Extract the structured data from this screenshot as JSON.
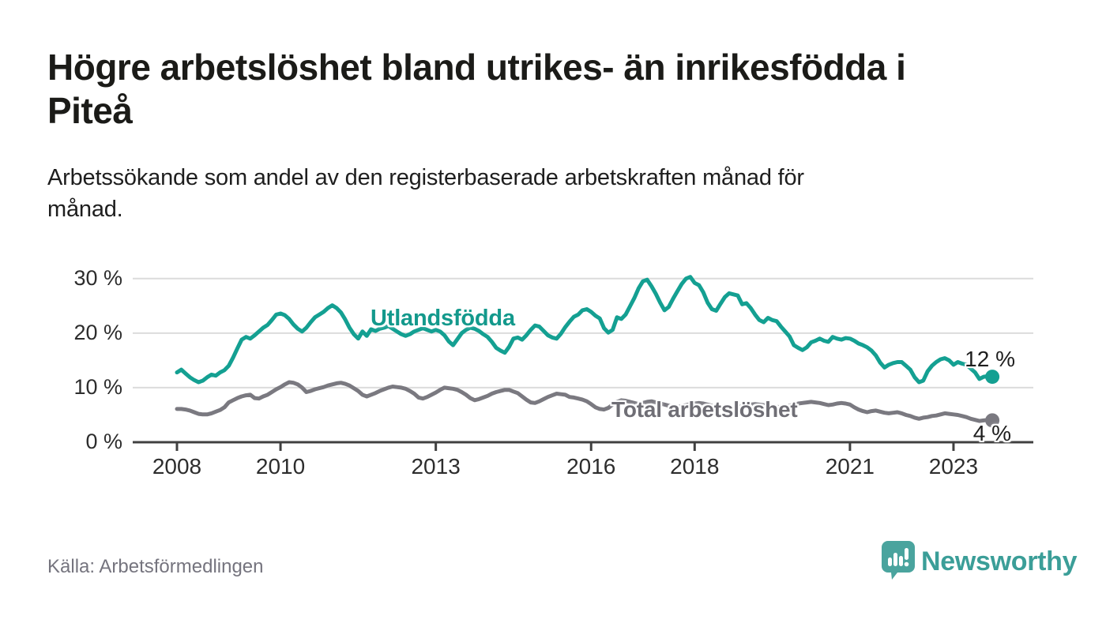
{
  "page": {
    "title_lines": [
      "Högre arbetslöshet bland utrikes- än inrikesfödda i",
      "Piteå"
    ],
    "subtitle_lines": [
      "Arbetssökande som andel av den registerbaserade arbetskraften månad för",
      "månad."
    ],
    "source": "Källa: Arbetsförmedlingen",
    "brand": "Newsworthy",
    "brand_color": "#3b9e98",
    "logo_bubble_color": "#4aa49e"
  },
  "chart_data": {
    "type": "line",
    "x_unit": "month",
    "x_start": "2008-01",
    "x_end": "2023-10",
    "points_per_year": 12,
    "ylim": [
      0,
      32
    ],
    "grid": "horizontal",
    "grid_color": "#dcdcdc",
    "axis_color": "#404040",
    "y_ticks": [
      {
        "value": 30,
        "label": "30 %"
      },
      {
        "value": 20,
        "label": "20 %"
      },
      {
        "value": 10,
        "label": "10 %"
      },
      {
        "value": 0,
        "label": "0 %"
      }
    ],
    "x_ticks": [
      {
        "year": 2008,
        "label": "2008"
      },
      {
        "year": 2010,
        "label": "2010"
      },
      {
        "year": 2013,
        "label": "2013"
      },
      {
        "year": 2016,
        "label": "2016"
      },
      {
        "year": 2018,
        "label": "2018"
      },
      {
        "year": 2021,
        "label": "2021"
      },
      {
        "year": 2023,
        "label": "2023"
      }
    ],
    "series": [
      {
        "name": "Utlandsfödda",
        "label": "Utlandsfödda",
        "end_label": "12 %",
        "end_value": 12,
        "color": "#14a092",
        "values": [
          12.8,
          13.3,
          12.6,
          11.9,
          11.4,
          11.0,
          11.3,
          11.9,
          12.4,
          12.2,
          12.8,
          13.2,
          14.0,
          15.5,
          17.2,
          18.8,
          19.3,
          19.0,
          19.6,
          20.3,
          21.0,
          21.5,
          22.4,
          23.4,
          23.6,
          23.3,
          22.6,
          21.6,
          20.8,
          20.3,
          21.0,
          22.0,
          22.9,
          23.4,
          23.9,
          24.6,
          25.1,
          24.6,
          23.8,
          22.5,
          21.0,
          19.8,
          19.0,
          20.3,
          19.5,
          20.7,
          20.4,
          20.8,
          21.0,
          21.3,
          20.8,
          20.3,
          19.8,
          19.5,
          19.8,
          20.3,
          20.6,
          20.9,
          20.6,
          20.3,
          20.6,
          20.3,
          19.6,
          18.5,
          17.8,
          18.9,
          20.0,
          20.6,
          21.0,
          20.8,
          20.4,
          19.8,
          19.3,
          18.4,
          17.3,
          16.8,
          16.4,
          17.5,
          19.0,
          19.2,
          18.8,
          19.6,
          20.6,
          21.4,
          21.2,
          20.4,
          19.6,
          19.2,
          19.0,
          19.9,
          21.1,
          22.1,
          23.0,
          23.4,
          24.2,
          24.4,
          23.9,
          23.2,
          22.7,
          20.9,
          20.1,
          20.6,
          22.9,
          22.6,
          23.4,
          24.9,
          26.4,
          28.2,
          29.5,
          29.8,
          28.6,
          27.2,
          25.6,
          24.2,
          24.8,
          26.3,
          27.7,
          29.0,
          30.0,
          30.3,
          29.2,
          28.8,
          27.5,
          25.6,
          24.4,
          24.1,
          25.4,
          26.6,
          27.3,
          27.1,
          26.9,
          25.3,
          25.5,
          24.6,
          23.4,
          22.4,
          22.0,
          22.8,
          22.4,
          22.2,
          21.2,
          20.3,
          19.4,
          17.8,
          17.3,
          16.9,
          17.4,
          18.3,
          18.6,
          19.0,
          18.6,
          18.4,
          19.3,
          19.0,
          18.8,
          19.1,
          19.0,
          18.6,
          18.1,
          17.8,
          17.4,
          16.8,
          15.9,
          14.6,
          13.7,
          14.2,
          14.5,
          14.7,
          14.7,
          14.0,
          13.3,
          11.9,
          11.0,
          11.3,
          13.0,
          14.0,
          14.7,
          15.2,
          15.4,
          15.0,
          14.2,
          14.7,
          14.4,
          14.2,
          13.5,
          12.8,
          11.6,
          12.0,
          12.1,
          12.0
        ]
      },
      {
        "name": "Total arbetslöshet",
        "label": "Total arbetslöshet",
        "end_label": "4 %",
        "end_value": 4,
        "color": "#7a7980",
        "values": [
          6.1,
          6.1,
          6.0,
          5.8,
          5.5,
          5.2,
          5.1,
          5.1,
          5.3,
          5.6,
          5.9,
          6.4,
          7.3,
          7.7,
          8.1,
          8.4,
          8.6,
          8.7,
          8.1,
          8.0,
          8.4,
          8.7,
          9.2,
          9.7,
          10.1,
          10.6,
          11.0,
          10.9,
          10.6,
          10.0,
          9.2,
          9.4,
          9.7,
          9.9,
          10.1,
          10.4,
          10.6,
          10.8,
          10.9,
          10.7,
          10.4,
          9.9,
          9.4,
          8.7,
          8.4,
          8.7,
          9.0,
          9.4,
          9.7,
          10.0,
          10.2,
          10.1,
          10.0,
          9.8,
          9.4,
          8.9,
          8.2,
          8.0,
          8.3,
          8.7,
          9.1,
          9.6,
          10.0,
          9.9,
          9.8,
          9.6,
          9.2,
          8.7,
          8.1,
          7.7,
          7.9,
          8.2,
          8.5,
          8.9,
          9.2,
          9.4,
          9.6,
          9.6,
          9.3,
          9.0,
          8.4,
          7.8,
          7.3,
          7.2,
          7.5,
          7.9,
          8.3,
          8.6,
          8.9,
          8.8,
          8.7,
          8.3,
          8.2,
          8.0,
          7.8,
          7.5,
          7.0,
          6.4,
          6.1,
          6.0,
          6.3,
          6.9,
          7.4,
          7.7,
          7.6,
          7.4,
          7.2,
          7.0,
          7.2,
          7.4,
          7.5,
          7.3,
          7.1,
          6.9,
          6.7,
          6.6,
          6.5,
          6.6,
          6.8,
          7.0,
          7.1,
          7.2,
          7.1,
          6.9,
          6.7,
          6.5,
          6.3,
          6.2,
          6.1,
          6.2,
          6.4,
          6.6,
          6.8,
          6.9,
          7.0,
          6.9,
          6.8,
          6.7,
          6.6,
          6.5,
          6.4,
          6.5,
          6.7,
          6.9,
          7.1,
          7.2,
          7.3,
          7.4,
          7.3,
          7.2,
          7.0,
          6.8,
          6.9,
          7.1,
          7.2,
          7.1,
          6.9,
          6.4,
          6.0,
          5.7,
          5.5,
          5.7,
          5.8,
          5.6,
          5.4,
          5.3,
          5.4,
          5.5,
          5.3,
          5.0,
          4.8,
          4.5,
          4.3,
          4.5,
          4.6,
          4.8,
          4.9,
          5.1,
          5.3,
          5.2,
          5.1,
          5.0,
          4.8,
          4.6,
          4.3,
          4.1,
          3.9,
          4.0,
          4.1,
          4.0
        ]
      }
    ]
  }
}
